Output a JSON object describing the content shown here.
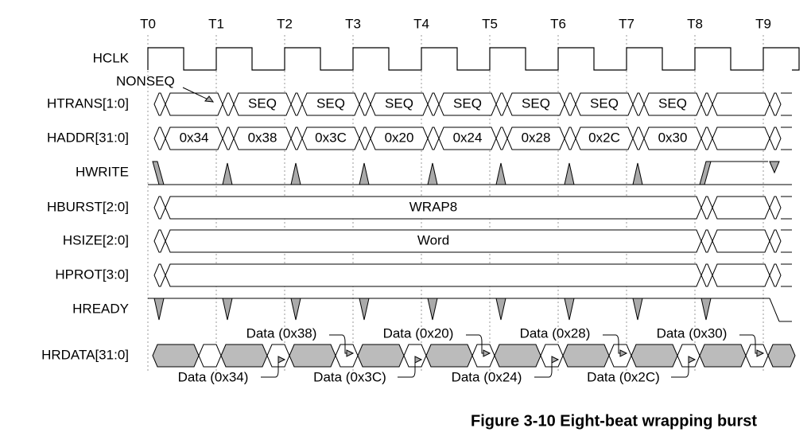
{
  "times": [
    "T0",
    "T1",
    "T2",
    "T3",
    "T4",
    "T5",
    "T6",
    "T7",
    "T8",
    "T9"
  ],
  "signals": [
    "HCLK",
    "HTRANS[1:0]",
    "HADDR[31:0]",
    "HWRITE",
    "HBURST[2:0]",
    "HSIZE[2:0]",
    "HPROT[3:0]",
    "HREADY",
    "HRDATA[31:0]"
  ],
  "htrans": {
    "first": "NONSEQ",
    "values": [
      "SEQ",
      "SEQ",
      "SEQ",
      "SEQ",
      "SEQ",
      "SEQ",
      "SEQ"
    ]
  },
  "haddr": [
    "0x34",
    "0x38",
    "0x3C",
    "0x20",
    "0x24",
    "0x28",
    "0x2C",
    "0x30"
  ],
  "hburst": "WRAP8",
  "hsize": "Word",
  "hrdata": {
    "above": [
      "Data (0x38)",
      "Data (0x20)",
      "Data (0x28)",
      "Data (0x30)"
    ],
    "below": [
      "Data (0x34)",
      "Data (0x3C)",
      "Data (0x24)",
      "Data (0x2C)"
    ]
  },
  "caption": "Figure 3-10 Eight-beat wrapping burst"
}
